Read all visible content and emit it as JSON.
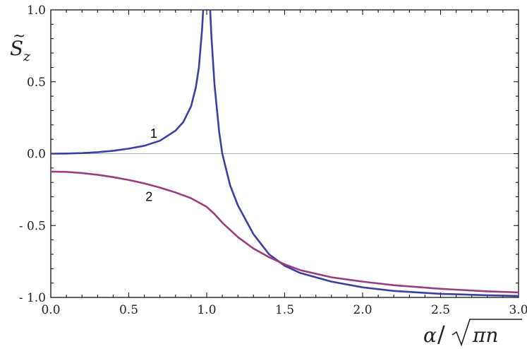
{
  "chart_data": {
    "type": "line",
    "title": "",
    "xlabel": "α/√πn",
    "ylabel": "S̃z",
    "xlim": [
      0.0,
      3.0
    ],
    "ylim": [
      -1.0,
      1.0
    ],
    "xticks": [
      "0.0",
      "0.5",
      "1.0",
      "1.5",
      "2.0",
      "2.5",
      "3.0"
    ],
    "yticks": [
      "1.0",
      "0.5",
      "0.0",
      "- 0.5",
      "- 1.0"
    ],
    "grid": false,
    "zero_line": true,
    "series": [
      {
        "name": "1",
        "color": "#3a3fa0",
        "x": [
          0.0,
          0.1,
          0.2,
          0.3,
          0.4,
          0.5,
          0.6,
          0.7,
          0.8,
          0.85,
          0.9,
          0.93,
          0.95,
          0.97,
          0.98,
          0.99
        ],
        "y": [
          0.0,
          0.001,
          0.004,
          0.01,
          0.02,
          0.035,
          0.055,
          0.09,
          0.16,
          0.22,
          0.33,
          0.46,
          0.6,
          0.86,
          1.05,
          1.3
        ]
      },
      {
        "name": "1",
        "color": "#3a3fa0",
        "x": [
          1.015,
          1.02,
          1.03,
          1.05,
          1.08,
          1.1,
          1.15,
          1.2,
          1.3,
          1.4,
          1.5,
          1.6,
          1.8,
          2.0,
          2.2,
          2.5,
          2.8,
          3.0
        ],
        "y": [
          1.3,
          1.05,
          0.82,
          0.48,
          0.15,
          0.0,
          -0.22,
          -0.36,
          -0.56,
          -0.7,
          -0.78,
          -0.83,
          -0.89,
          -0.93,
          -0.955,
          -0.975,
          -0.985,
          -0.99
        ]
      },
      {
        "name": "2",
        "color": "#9a3d7e",
        "x": [
          0.0,
          0.1,
          0.2,
          0.3,
          0.4,
          0.5,
          0.6,
          0.7,
          0.8,
          0.9,
          1.0,
          1.05,
          1.1,
          1.2,
          1.3,
          1.4,
          1.5,
          1.6,
          1.8,
          2.0,
          2.2,
          2.5,
          2.8,
          3.0
        ],
        "y": [
          -0.125,
          -0.127,
          -0.135,
          -0.147,
          -0.163,
          -0.183,
          -0.207,
          -0.236,
          -0.27,
          -0.31,
          -0.37,
          -0.42,
          -0.48,
          -0.58,
          -0.66,
          -0.72,
          -0.77,
          -0.81,
          -0.86,
          -0.89,
          -0.915,
          -0.94,
          -0.958,
          -0.965
        ]
      }
    ],
    "curve_labels": [
      {
        "text": "1",
        "x": 0.66,
        "y": 0.22
      },
      {
        "text": "2",
        "x": 0.63,
        "y": -0.66
      }
    ]
  }
}
